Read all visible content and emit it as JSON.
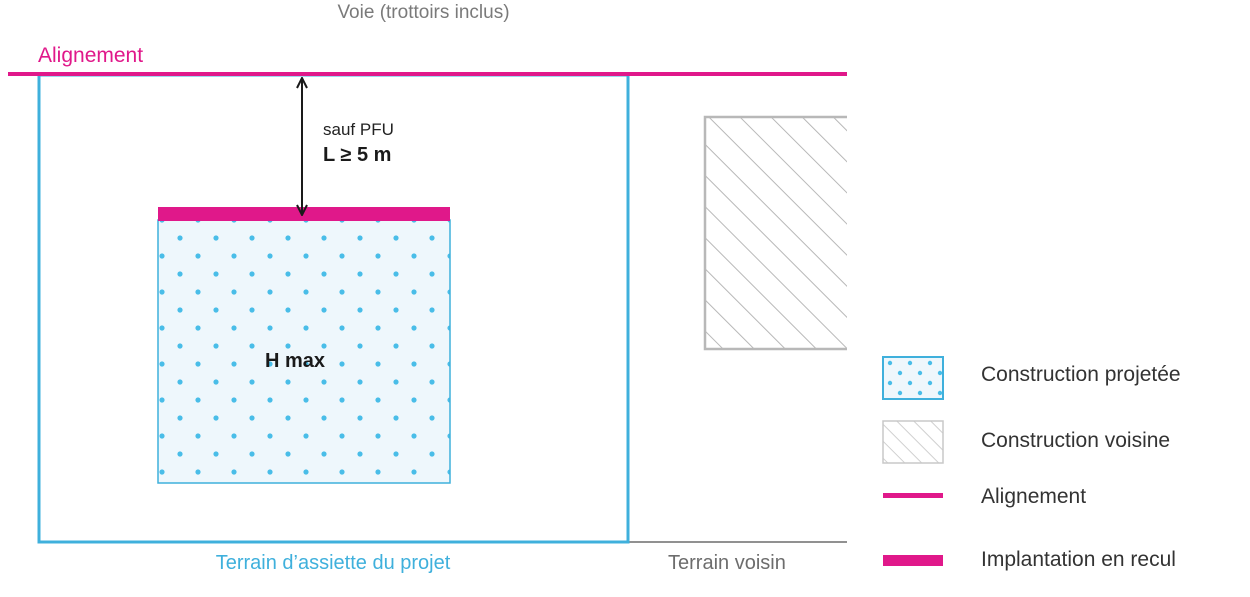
{
  "diagram": {
    "road_label": "Voie (trottoirs inclus)",
    "alignment_label": "Alignement",
    "setback_condition": "sauf PFU",
    "setback_distance": "L ≥ 5 m",
    "height_label": "H max",
    "project_plot_label": "Terrain d’assiette du projet",
    "neighbour_plot_label": "Terrain voisin"
  },
  "legend": {
    "items": [
      {
        "label": "Construction projetée",
        "icon": "dotted-blue-square-icon"
      },
      {
        "label": "Construction voisine",
        "icon": "hatched-grey-square-icon"
      },
      {
        "label": "Alignement",
        "icon": "thin-magenta-line-icon"
      },
      {
        "label": "Implantation en recul",
        "icon": "thick-magenta-bar-icon"
      }
    ]
  },
  "colors": {
    "magenta": "#e0188a",
    "blue": "#3fb0dc",
    "dots": "#49bde8",
    "fill": "#eef7fc",
    "grey": "#b8b8b8",
    "dark": "#1a1a1a"
  }
}
